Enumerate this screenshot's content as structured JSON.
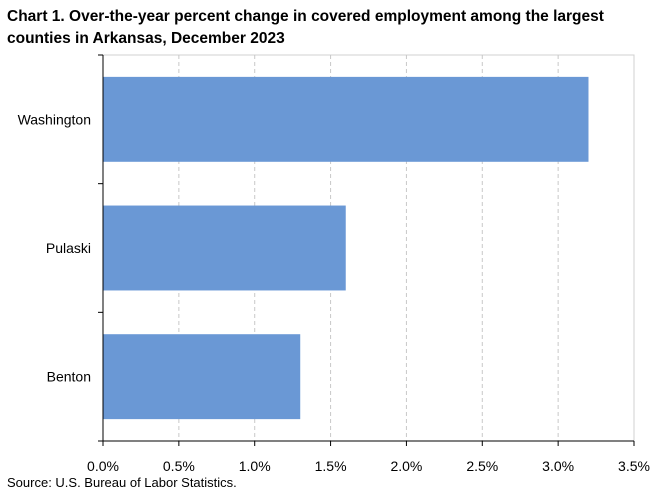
{
  "title": "Chart 1. Over-the-year percent change in covered employment among the largest counties in Arkansas, December 2023",
  "source": "Source: U.S. Bureau of Labor Statistics.",
  "chart_data": {
    "type": "bar",
    "orientation": "horizontal",
    "categories": [
      "Washington",
      "Pulaski",
      "Benton"
    ],
    "values": [
      3.2,
      1.6,
      1.3
    ],
    "unit": "%",
    "xlim": [
      0,
      3.5
    ],
    "xticks": [
      0,
      0.5,
      1.0,
      1.5,
      2.0,
      2.5,
      3.0,
      3.5
    ],
    "xtick_labels": [
      "0.0%",
      "0.5%",
      "1.0%",
      "1.5%",
      "2.0%",
      "2.5%",
      "3.0%",
      "3.5%"
    ],
    "grid": "vertical dashed",
    "bar_color": "#6a98d5",
    "grid_color": "#c8c8c8",
    "legend": "none"
  }
}
